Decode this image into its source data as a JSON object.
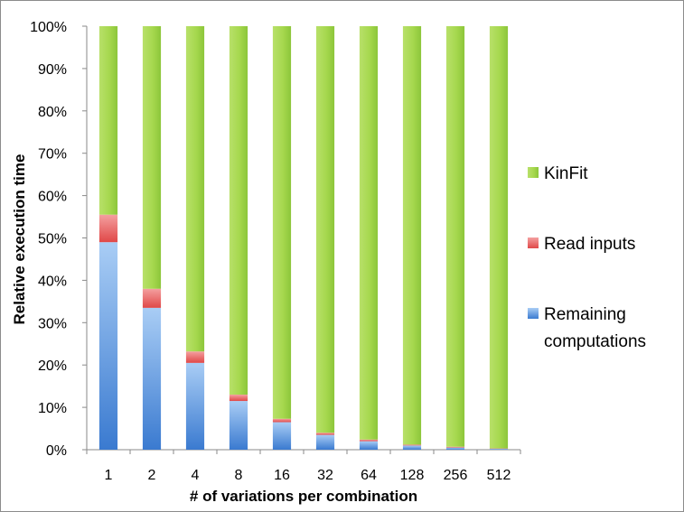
{
  "chart_data": {
    "type": "bar",
    "stacked": "percent",
    "categories": [
      "1",
      "2",
      "4",
      "8",
      "16",
      "32",
      "64",
      "128",
      "256",
      "512"
    ],
    "series": [
      {
        "name": "Remaining computations",
        "color": "#3a7ad0",
        "values": [
          49,
          33.5,
          20.5,
          11.5,
          6.5,
          3.5,
          2,
          1,
          0.5,
          0.2
        ]
      },
      {
        "name": "Read inputs",
        "color": "#e85a5a",
        "values": [
          6.5,
          4.5,
          2.7,
          1.5,
          0.8,
          0.5,
          0.4,
          0.2,
          0.2,
          0.1
        ]
      },
      {
        "name": "KinFit",
        "color": "#96cf3a",
        "values": [
          44.5,
          62,
          76.8,
          87,
          92.7,
          96,
          97.6,
          98.8,
          99.3,
          99.7
        ]
      }
    ],
    "title": "",
    "xlabel": "# of variations per combination",
    "ylabel": "Relative execution time",
    "ylim": [
      0,
      100
    ],
    "yticks": [
      "0%",
      "10%",
      "20%",
      "30%",
      "40%",
      "50%",
      "60%",
      "70%",
      "80%",
      "90%",
      "100%"
    ],
    "legend": {
      "position": "right",
      "items": [
        {
          "label": "KinFit",
          "color": "#96cf3a"
        },
        {
          "label": "Read inputs",
          "color": "#e85a5a"
        },
        {
          "label": "Remaining computations",
          "lines": [
            "Remaining",
            "computations"
          ],
          "color": "#3a7ad0"
        }
      ]
    },
    "grid": false
  }
}
